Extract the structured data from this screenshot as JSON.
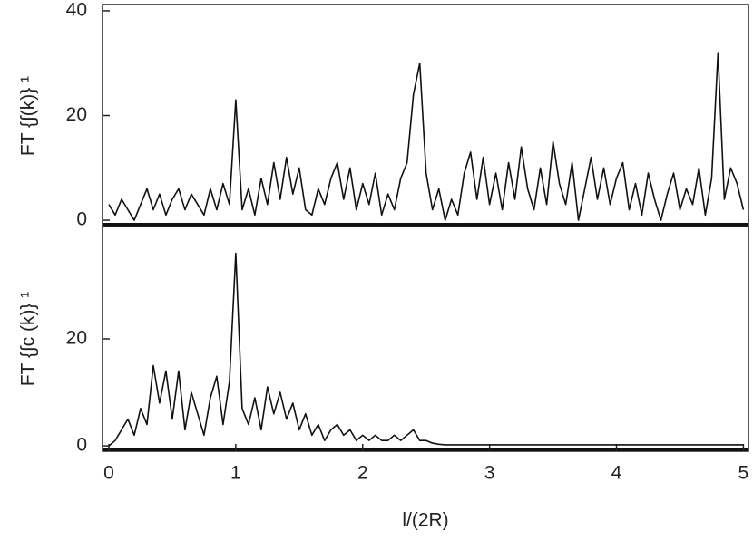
{
  "chart_data": [
    {
      "type": "line",
      "ylabel": "FT {∫(k)} ¹",
      "color": "#111111",
      "x": [
        0,
        0.05,
        0.1,
        0.15,
        0.2,
        0.25,
        0.3,
        0.35,
        0.4,
        0.45,
        0.5,
        0.55,
        0.6,
        0.65,
        0.7,
        0.75,
        0.8,
        0.85,
        0.9,
        0.95,
        1,
        1.05,
        1.1,
        1.15,
        1.2,
        1.25,
        1.3,
        1.35,
        1.4,
        1.45,
        1.5,
        1.55,
        1.6,
        1.65,
        1.7,
        1.75,
        1.8,
        1.85,
        1.9,
        1.95,
        2,
        2.05,
        2.1,
        2.15,
        2.2,
        2.25,
        2.3,
        2.35,
        2.4,
        2.45,
        2.5,
        2.55,
        2.6,
        2.65,
        2.7,
        2.75,
        2.8,
        2.85,
        2.9,
        2.95,
        3,
        3.05,
        3.1,
        3.15,
        3.2,
        3.25,
        3.3,
        3.35,
        3.4,
        3.45,
        3.5,
        3.55,
        3.6,
        3.65,
        3.7,
        3.75,
        3.8,
        3.85,
        3.9,
        3.95,
        4,
        4.05,
        4.1,
        4.15,
        4.2,
        4.25,
        4.3,
        4.35,
        4.4,
        4.45,
        4.5,
        4.55,
        4.6,
        4.65,
        4.7,
        4.75,
        4.8,
        4.85,
        4.9,
        4.95,
        5
      ],
      "values": [
        3,
        1,
        4,
        2,
        0,
        3,
        6,
        2,
        5,
        1,
        4,
        6,
        2,
        5,
        3,
        1,
        6,
        2,
        7,
        3,
        23,
        2,
        6,
        1,
        8,
        3,
        11,
        4,
        12,
        5,
        10,
        2,
        1,
        6,
        3,
        8,
        11,
        4,
        10,
        2,
        7,
        3,
        9,
        1,
        5,
        2,
        8,
        11,
        24,
        30,
        9,
        2,
        6,
        0,
        4,
        1,
        9,
        13,
        4,
        12,
        3,
        9,
        2,
        11,
        4,
        14,
        6,
        2,
        10,
        3,
        15,
        7,
        3,
        11,
        0,
        6,
        12,
        4,
        10,
        3,
        8,
        11,
        2,
        7,
        1,
        9,
        4,
        0,
        5,
        9,
        2,
        6,
        3,
        10,
        1,
        8,
        32,
        4,
        10,
        7,
        2
      ],
      "xlim": [
        -0.05,
        5.04
      ],
      "ylim": [
        -1.2,
        41.2
      ],
      "yticks": [
        0,
        20,
        40
      ]
    },
    {
      "type": "line",
      "ylabel": "FT {∫c (k)} ¹",
      "xlabel": "l/(2R)",
      "color": "#111111",
      "x": [
        0,
        0.05,
        0.1,
        0.15,
        0.2,
        0.25,
        0.3,
        0.35,
        0.4,
        0.45,
        0.5,
        0.55,
        0.6,
        0.65,
        0.7,
        0.75,
        0.8,
        0.85,
        0.9,
        0.95,
        1,
        1.05,
        1.1,
        1.15,
        1.2,
        1.25,
        1.3,
        1.35,
        1.4,
        1.45,
        1.5,
        1.55,
        1.6,
        1.65,
        1.7,
        1.75,
        1.8,
        1.85,
        1.9,
        1.95,
        2,
        2.05,
        2.1,
        2.15,
        2.2,
        2.25,
        2.3,
        2.35,
        2.4,
        2.45,
        2.5,
        2.55,
        2.6,
        2.65,
        2.7,
        2.75,
        2.8,
        2.85,
        2.9,
        2.95,
        3,
        3.05,
        3.1,
        3.15,
        3.2,
        3.25,
        3.3,
        3.35,
        3.4,
        3.45,
        3.5,
        3.55,
        3.6,
        3.65,
        3.7,
        3.75,
        3.8,
        3.85,
        3.9,
        3.95,
        4,
        4.05,
        4.1,
        4.15,
        4.2,
        4.25,
        4.3,
        4.35,
        4.4,
        4.45,
        4.5,
        4.55,
        4.6,
        4.65,
        4.7,
        4.75,
        4.8,
        4.85,
        4.9,
        4.95,
        5
      ],
      "values": [
        0,
        1,
        3,
        5,
        2,
        7,
        4,
        15,
        8,
        14,
        5,
        14,
        3,
        10,
        6,
        2,
        9,
        13,
        4,
        12,
        36,
        7,
        4,
        9,
        3,
        11,
        6,
        10,
        5,
        8,
        3,
        6,
        2,
        4,
        1,
        3,
        4,
        2,
        3,
        1,
        2,
        1,
        2,
        1,
        1,
        2,
        1,
        2,
        3,
        1,
        1,
        0.5,
        0.3,
        0.2,
        0.2,
        0.2,
        0.2,
        0.2,
        0.2,
        0.2,
        0.2,
        0.2,
        0.2,
        0.2,
        0.2,
        0.2,
        0.2,
        0.2,
        0.2,
        0.2,
        0.2,
        0.2,
        0.2,
        0.2,
        0.2,
        0.2,
        0.2,
        0.2,
        0.2,
        0.2,
        0.2,
        0.2,
        0.2,
        0.2,
        0.2,
        0.2,
        0.2,
        0.2,
        0.2,
        0.2,
        0.2,
        0.2,
        0.2,
        0.2,
        0.2,
        0.2,
        0.2,
        0.2,
        0.2,
        0.2,
        0.2
      ],
      "xlim": [
        -0.05,
        5.04
      ],
      "ylim": [
        -1,
        41
      ],
      "yticks": [
        0,
        20
      ],
      "xticks": [
        0,
        1,
        2,
        3,
        4,
        5
      ]
    }
  ]
}
